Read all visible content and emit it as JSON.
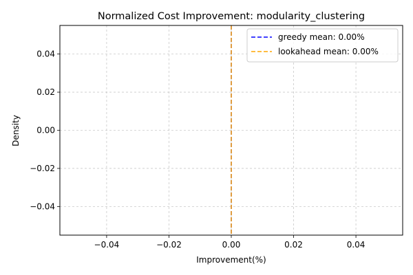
{
  "chart_data": {
    "type": "line",
    "title": "Normalized Cost Improvement: modularity_clustering",
    "xlabel": "Improvement(%)",
    "ylabel": "Density",
    "xlim": [
      -0.055,
      0.055
    ],
    "ylim": [
      -0.055,
      0.055
    ],
    "x_ticks": [
      -0.04,
      -0.02,
      0.0,
      0.02,
      0.04
    ],
    "x_tick_labels": [
      "−0.04",
      "−0.02",
      "0.00",
      "0.02",
      "0.04"
    ],
    "y_ticks": [
      0.04,
      0.02,
      0.0,
      -0.02,
      -0.04
    ],
    "y_tick_labels": [
      "0.04",
      "0.02",
      "0.00",
      "−0.02",
      "−0.04"
    ],
    "grid": true,
    "grid_style": "dashed",
    "legend_position": "upper right",
    "series": [
      {
        "name": "greedy mean: 0.00%",
        "kind": "vline",
        "x": 0.0,
        "color": "#0000ff",
        "line_style": "dashed"
      },
      {
        "name": "lookahead mean: 0.00%",
        "kind": "vline",
        "x": 0.0,
        "color": "#ffa500",
        "line_style": "dashed"
      }
    ]
  }
}
